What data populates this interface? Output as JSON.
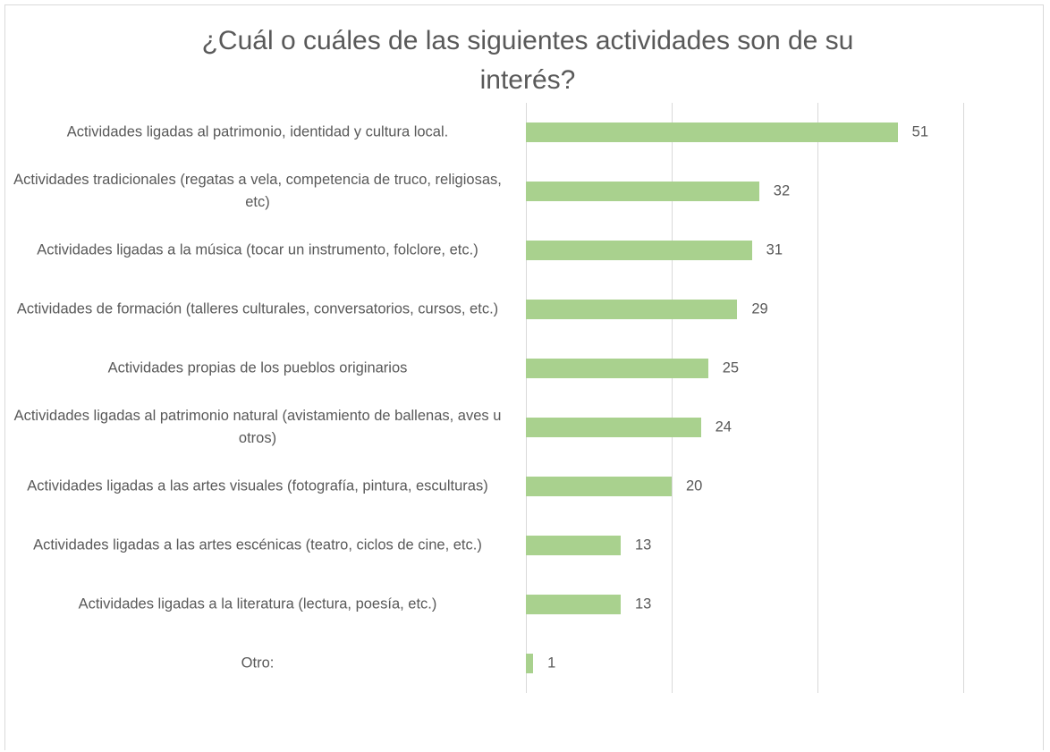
{
  "chart_data": {
    "type": "barh",
    "title": "¿Cuál o cuáles de las siguientes actividades son de su interés?",
    "categories": [
      "Actividades ligadas al patrimonio, identidad y cultura local.",
      "Actividades tradicionales (regatas a vela, competencia de truco, religiosas, etc)",
      "Actividades ligadas a la música (tocar un instrumento, folclore, etc.)",
      "Actividades de formación (talleres culturales, conversatorios, cursos, etc.)",
      "Actividades propias de los pueblos originarios",
      "Actividades ligadas al patrimonio natural (avistamiento de ballenas, aves u otros)",
      "Actividades ligadas a las artes visuales (fotografía, pintura, esculturas)",
      "Actividades ligadas a las artes escénicas (teatro, ciclos de cine, etc.)",
      "Actividades ligadas a la literatura (lectura, poesía, etc.)",
      "Otro:"
    ],
    "values": [
      51,
      32,
      31,
      29,
      25,
      24,
      20,
      13,
      13,
      1
    ],
    "color": "#a9d18e",
    "xlim": [
      0,
      60
    ],
    "xticks": [
      0,
      20,
      40,
      60
    ],
    "grid": true
  }
}
